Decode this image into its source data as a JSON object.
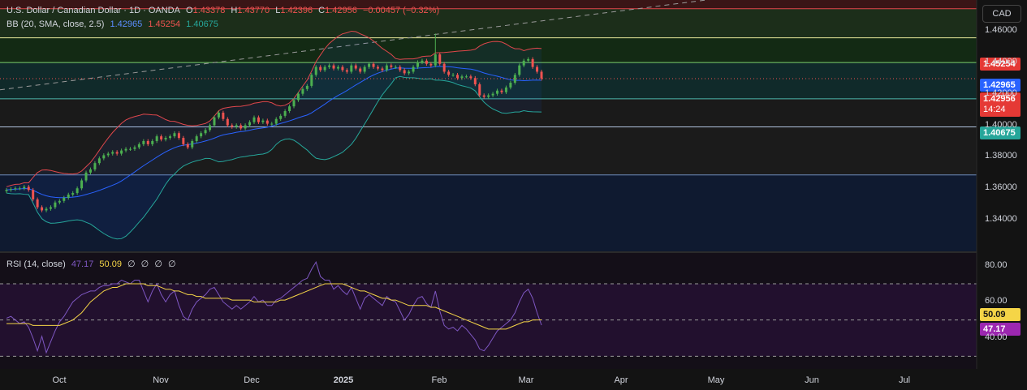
{
  "header": {
    "symbol": "U.S. Dollar / Canadian Dollar · 1D · OANDA",
    "open_label": "O",
    "open": "1.43378",
    "high_label": "H",
    "high": "1.43770",
    "low_label": "L",
    "low": "1.42396",
    "close_label": "C",
    "close": "1.42956",
    "change": "−0.00457 (−0.32%)"
  },
  "bb_legend": {
    "label": "BB (20, SMA, close, 2.5)",
    "basis": "1.42965",
    "upper": "1.45254",
    "lower": "1.40675"
  },
  "rsi_legend": {
    "label": "RSI (14, close)",
    "rsi": "47.17",
    "ma": "50.09",
    "extra": [
      "∅",
      "∅",
      "∅",
      "∅"
    ]
  },
  "currency": "CAD",
  "badges": {
    "upper": "1.45254",
    "basis": "1.42965",
    "close": "1.42956",
    "countdown": "14:24",
    "lower": "1.40675",
    "rsi_ma": "50.09",
    "rsi": "47.17"
  },
  "colors": {
    "up": "#26a69a",
    "up_candle": "#4caf50",
    "down": "#ef5350",
    "bb_upper": "#e0474c",
    "bb_basis": "#2962ff",
    "bb_lower": "#26a69a",
    "rsi": "#7e57c2",
    "rsi_ma": "#f5d547"
  },
  "chart_data": [
    {
      "type": "candlestick",
      "title": "U.S. Dollar / Canadian Dollar · 1D · OANDA",
      "price_axis": {
        "ticks": [
          "1.46000",
          "1.44000",
          "1.42000",
          "1.40000",
          "1.38000",
          "1.36000",
          "1.34000"
        ],
        "range": [
          1.32,
          1.4795
        ]
      },
      "time_axis": {
        "ticks": [
          "Oct",
          "Nov",
          "Dec",
          "2025",
          "Feb",
          "Mar",
          "Apr",
          "May",
          "Jun",
          "Jul"
        ]
      },
      "horizontal_levels": [
        1.474,
        1.4555,
        1.4398,
        1.4168,
        1.399,
        1.3685
      ],
      "trendline": {
        "from": [
          "2024-09-20",
          1.4225
        ],
        "to": [
          "2025-07-31",
          1.49
        ]
      },
      "candles_close": [
        1.359,
        1.3595,
        1.36,
        1.36,
        1.361,
        1.359,
        1.353,
        1.348,
        1.346,
        1.347,
        1.348,
        1.351,
        1.352,
        1.354,
        1.356,
        1.357,
        1.36,
        1.365,
        1.37,
        1.372,
        1.376,
        1.379,
        1.381,
        1.382,
        1.383,
        1.382,
        1.384,
        1.385,
        1.385,
        1.386,
        1.388,
        1.39,
        1.388,
        1.39,
        1.393,
        1.391,
        1.392,
        1.393,
        1.395,
        1.392,
        1.388,
        1.386,
        1.39,
        1.393,
        1.395,
        1.397,
        1.4,
        1.405,
        1.408,
        1.404,
        1.4,
        1.399,
        1.4,
        1.398,
        1.4,
        1.402,
        1.405,
        1.402,
        1.403,
        1.401,
        1.401,
        1.404,
        1.406,
        1.409,
        1.412,
        1.416,
        1.42,
        1.423,
        1.425,
        1.432,
        1.437,
        1.435,
        1.437,
        1.438,
        1.436,
        1.437,
        1.435,
        1.434,
        1.438,
        1.436,
        1.434,
        1.437,
        1.439,
        1.437,
        1.436,
        1.435,
        1.438,
        1.437,
        1.437,
        1.435,
        1.433,
        1.434,
        1.437,
        1.44,
        1.441,
        1.439,
        1.438,
        1.445,
        1.439,
        1.434,
        1.432,
        1.432,
        1.43,
        1.431,
        1.431,
        1.43,
        1.426,
        1.419,
        1.418,
        1.419,
        1.42,
        1.422,
        1.421,
        1.424,
        1.427,
        1.432,
        1.438,
        1.441,
        1.442,
        1.437,
        1.434,
        1.4296
      ],
      "bb_upper_last": 1.45254,
      "bb_basis_last": 1.42965,
      "bb_lower_last": 1.40675
    },
    {
      "type": "line",
      "title": "RSI (14, close)",
      "y_axis": {
        "ticks": [
          "80.00",
          "60.00",
          "40.00"
        ],
        "range": [
          23,
          87
        ]
      },
      "bands": [
        70,
        50,
        30
      ],
      "series": [
        {
          "name": "RSI",
          "values": [
            51,
            52,
            50,
            48,
            49,
            46,
            40,
            33,
            41,
            32,
            38,
            44,
            49,
            52,
            56,
            60,
            62,
            64,
            65,
            66,
            66,
            68,
            69,
            69,
            70,
            70,
            72,
            71,
            70,
            72,
            72,
            66,
            60,
            66,
            70,
            64,
            60,
            64,
            66,
            58,
            52,
            50,
            56,
            60,
            62,
            64,
            67,
            68,
            64,
            60,
            58,
            56,
            58,
            56,
            58,
            60,
            63,
            60,
            61,
            58,
            58,
            61,
            62,
            64,
            66,
            68,
            70,
            72,
            73,
            78,
            82,
            74,
            72,
            72,
            67,
            69,
            66,
            64,
            68,
            62,
            56,
            62,
            64,
            62,
            60,
            58,
            63,
            61,
            60,
            55,
            50,
            53,
            58,
            62,
            63,
            59,
            57,
            66,
            55,
            47,
            45,
            46,
            44,
            47,
            45,
            42,
            39,
            34,
            33,
            36,
            40,
            44,
            46,
            48,
            50,
            54,
            60,
            65,
            67,
            62,
            54,
            47.17
          ]
        },
        {
          "name": "RSI-based MA",
          "values": [
            48,
            48,
            48,
            48,
            48,
            48,
            47,
            47,
            47,
            47,
            47,
            47,
            47,
            48,
            49,
            50,
            52,
            54,
            57,
            60,
            62,
            64,
            66,
            67,
            68,
            68,
            69,
            70,
            70,
            70,
            70,
            70,
            69,
            69,
            69,
            68,
            67,
            67,
            66,
            66,
            65,
            64,
            64,
            63,
            63,
            62,
            62,
            62,
            62,
            62,
            62,
            61,
            61,
            61,
            61,
            61,
            60,
            60,
            60,
            60,
            60,
            60,
            61,
            61,
            62,
            63,
            64,
            65,
            66,
            67,
            68,
            69,
            70,
            70,
            70,
            70,
            70,
            69,
            68,
            67,
            66,
            66,
            65,
            64,
            63,
            62,
            62,
            61,
            61,
            60,
            59,
            58,
            58,
            58,
            58,
            58,
            57,
            57,
            56,
            55,
            54,
            53,
            52,
            51,
            50,
            49,
            48,
            47,
            46,
            45,
            45,
            45,
            45,
            45,
            46,
            47,
            48,
            49,
            49,
            50,
            50,
            50.09
          ]
        }
      ]
    }
  ]
}
